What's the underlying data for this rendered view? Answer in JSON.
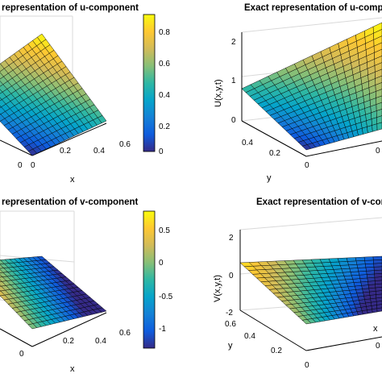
{
  "chart_data": [
    {
      "type": "surface",
      "title": "Numerical representation of u-component",
      "title_visible": "representation of u-component",
      "xlabel": "x",
      "ylabel": "",
      "zlabel": "",
      "x_ticks": [
        "0",
        "0.2",
        "0.4",
        "0.6"
      ],
      "x_ticks_visible": [
        "0",
        "0",
        "0.2",
        "0.4",
        "0.6"
      ],
      "y_ticks": [],
      "z_ticks": [],
      "x_range": [
        0,
        0.6
      ],
      "y_range": [
        0,
        0.6
      ],
      "z_range": [
        0,
        0.9
      ],
      "grid": true,
      "colormap": "parula",
      "colorbar": {
        "ticks": [
          "0.8",
          "0.6",
          "0.4",
          "0.2",
          "0"
        ],
        "values": [
          0.8,
          0.6,
          0.4,
          0.2,
          0
        ],
        "range": [
          0,
          0.85
        ]
      },
      "surface": {
        "value_at_x0_y0": 0.0,
        "value_at_x06_y0": 0.42,
        "value_at_x0_y06": 0.42,
        "value_at_x06_y06": 0.85,
        "edgecolor": "#000000"
      }
    },
    {
      "type": "surface",
      "title": "Exact representation of u-component",
      "xlabel": "",
      "ylabel": "y",
      "zlabel": "U(x,y,t)",
      "x_ticks": [
        "0"
      ],
      "y_ticks": [
        "0.4",
        "0.2",
        "0"
      ],
      "z_ticks": [
        "2",
        "1",
        "0"
      ],
      "z_range": [
        0,
        2
      ],
      "grid": true,
      "colormap": "parula",
      "surface": {
        "value_at_x0_y0": 0.0,
        "value_at_x06_y06": 0.85,
        "edgecolor": "#000000"
      }
    },
    {
      "type": "surface",
      "title": "Numerical representation of v-component",
      "title_visible": "representation of v-component",
      "xlabel": "x",
      "ylabel": "",
      "zlabel": "",
      "x_ticks": [
        "0",
        "0.2",
        "0.4",
        "0.6"
      ],
      "x_ticks_visible": [
        "0",
        "0.2",
        "0.4",
        "0.6"
      ],
      "grid": true,
      "colormap": "parula",
      "colorbar": {
        "ticks": [
          "0.5",
          "0",
          "-0.5",
          "-1"
        ],
        "values": [
          0.5,
          0,
          -0.5,
          -1
        ],
        "range": [
          -1.3,
          0.75
        ]
      },
      "surface": {
        "value_range": [
          -1.3,
          0.6
        ],
        "edgecolor": "#000000"
      }
    },
    {
      "type": "surface",
      "title": "Exact representation of v-component",
      "title_visible": "Exact representation of v-componen",
      "xlabel": "x",
      "ylabel": "y",
      "zlabel": "V(x,y,t)",
      "x_ticks": [
        "0"
      ],
      "y_ticks": [
        "0.6",
        "0.4",
        "0.2",
        "0"
      ],
      "z_ticks": [
        "2",
        "0",
        "-2"
      ],
      "z_range": [
        -2,
        2
      ],
      "grid": true,
      "colormap": "parula",
      "surface": {
        "value_range": [
          -1.3,
          0.6
        ],
        "edgecolor": "#000000"
      }
    }
  ],
  "colors": {
    "parula": [
      "#352a87",
      "#0f5cdd",
      "#1481d6",
      "#06a4ca",
      "#2eb7a4",
      "#87bf77",
      "#d1bb59",
      "#fec832",
      "#f9fb0e"
    ],
    "axis": "#000000",
    "grid": "#d9d9d9"
  }
}
